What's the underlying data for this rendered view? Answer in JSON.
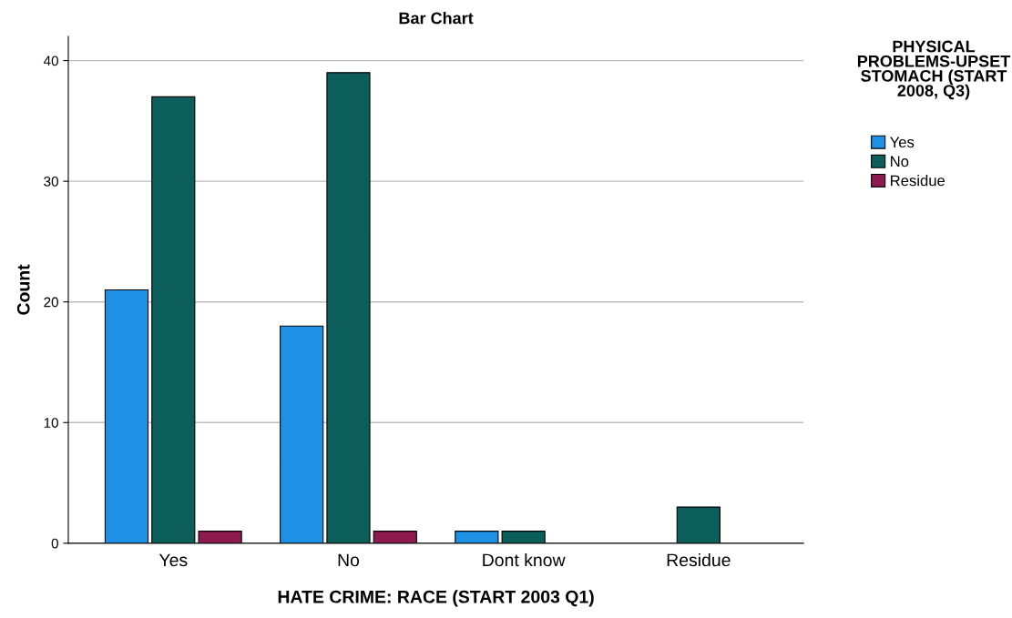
{
  "chart_data": {
    "type": "bar",
    "title": "Bar Chart",
    "xlabel": "HATE CRIME: RACE (START 2003 Q1)",
    "ylabel": "Count",
    "legend_title": "PHYSICAL PROBLEMS-UPSET STOMACH (START 2008, Q3)",
    "categories": [
      "Yes",
      "No",
      "Dont know",
      "Residue"
    ],
    "series": [
      {
        "name": "Yes",
        "color": "#1e90e6",
        "values": [
          21,
          18,
          1,
          null
        ]
      },
      {
        "name": "No",
        "color": "#0b5e5a",
        "values": [
          37,
          39,
          1,
          3
        ]
      },
      {
        "name": "Residue",
        "color": "#8f1a4f",
        "values": [
          1,
          1,
          null,
          null
        ]
      }
    ],
    "ylim": [
      0,
      42
    ],
    "yticks": [
      0,
      10,
      20,
      30,
      40
    ],
    "grid": "y",
    "legend": "right"
  }
}
